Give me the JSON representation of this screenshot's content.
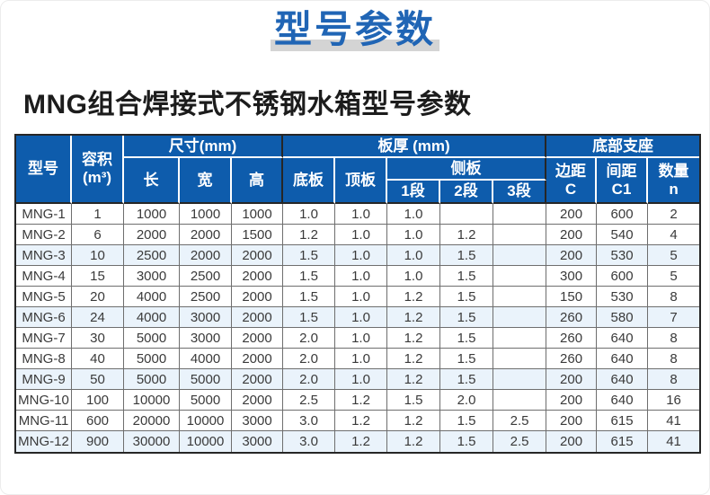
{
  "banner": {
    "title": "型号参数"
  },
  "subtitle": "MNG组合焊接式不锈钢水箱型号参数",
  "colors": {
    "header_blue": "#0e5cac",
    "title_blue": "#2065b5",
    "title_bar_gray": "#d4d4d4",
    "row_tint_blue": "#eaf3fb",
    "border_dark": "#262626",
    "border_gray": "#6e6e6e"
  },
  "table": {
    "header": {
      "model": "型号",
      "volume_l1": "容积",
      "volume_l2": "(m³)",
      "size_group": "尺寸(mm)",
      "length": "长",
      "width": "宽",
      "height": "高",
      "thickness_group": "板厚 (mm)",
      "bottom_plate": "底板",
      "top_plate": "顶板",
      "side_group": "侧板",
      "seg1": "1段",
      "seg2": "2段",
      "seg3": "3段",
      "support_group": "底部支座",
      "edge_l1": "边距",
      "edge_l2": "C",
      "spacing_l1": "间距",
      "spacing_l2": "C1",
      "qty_l1": "数量",
      "qty_l2": "n"
    },
    "row_keys": [
      "model",
      "volume",
      "length",
      "width",
      "height",
      "bottom_plate",
      "top_plate",
      "seg1",
      "seg2",
      "seg3",
      "edge_c",
      "spacing_c1",
      "qty_n"
    ],
    "rows": [
      {
        "model": "MNG-1",
        "volume": "1",
        "length": "1000",
        "width": "1000",
        "height": "1000",
        "bottom_plate": "1.0",
        "top_plate": "1.0",
        "seg1": "1.0",
        "seg2": "",
        "seg3": "",
        "edge_c": "200",
        "spacing_c1": "600",
        "qty_n": "2"
      },
      {
        "model": "MNG-2",
        "volume": "6",
        "length": "2000",
        "width": "2000",
        "height": "1500",
        "bottom_plate": "1.2",
        "top_plate": "1.0",
        "seg1": "1.0",
        "seg2": "1.2",
        "seg3": "",
        "edge_c": "200",
        "spacing_c1": "540",
        "qty_n": "4"
      },
      {
        "model": "MNG-3",
        "volume": "10",
        "length": "2500",
        "width": "2000",
        "height": "2000",
        "bottom_plate": "1.5",
        "top_plate": "1.0",
        "seg1": "1.0",
        "seg2": "1.5",
        "seg3": "",
        "edge_c": "200",
        "spacing_c1": "530",
        "qty_n": "5"
      },
      {
        "model": "MNG-4",
        "volume": "15",
        "length": "3000",
        "width": "2500",
        "height": "2000",
        "bottom_plate": "1.5",
        "top_plate": "1.0",
        "seg1": "1.0",
        "seg2": "1.5",
        "seg3": "",
        "edge_c": "300",
        "spacing_c1": "600",
        "qty_n": "5"
      },
      {
        "model": "MNG-5",
        "volume": "20",
        "length": "4000",
        "width": "2500",
        "height": "2000",
        "bottom_plate": "1.5",
        "top_plate": "1.0",
        "seg1": "1.2",
        "seg2": "1.5",
        "seg3": "",
        "edge_c": "150",
        "spacing_c1": "530",
        "qty_n": "8"
      },
      {
        "model": "MNG-6",
        "volume": "24",
        "length": "4000",
        "width": "3000",
        "height": "2000",
        "bottom_plate": "1.5",
        "top_plate": "1.0",
        "seg1": "1.2",
        "seg2": "1.5",
        "seg3": "",
        "edge_c": "260",
        "spacing_c1": "580",
        "qty_n": "7"
      },
      {
        "model": "MNG-7",
        "volume": "30",
        "length": "5000",
        "width": "3000",
        "height": "2000",
        "bottom_plate": "2.0",
        "top_plate": "1.0",
        "seg1": "1.2",
        "seg2": "1.5",
        "seg3": "",
        "edge_c": "260",
        "spacing_c1": "640",
        "qty_n": "8"
      },
      {
        "model": "MNG-8",
        "volume": "40",
        "length": "5000",
        "width": "4000",
        "height": "2000",
        "bottom_plate": "2.0",
        "top_plate": "1.0",
        "seg1": "1.2",
        "seg2": "1.5",
        "seg3": "",
        "edge_c": "260",
        "spacing_c1": "640",
        "qty_n": "8"
      },
      {
        "model": "MNG-9",
        "volume": "50",
        "length": "5000",
        "width": "5000",
        "height": "2000",
        "bottom_plate": "2.0",
        "top_plate": "1.0",
        "seg1": "1.2",
        "seg2": "1.5",
        "seg3": "",
        "edge_c": "200",
        "spacing_c1": "640",
        "qty_n": "8"
      },
      {
        "model": "MNG-10",
        "volume": "100",
        "length": "10000",
        "width": "5000",
        "height": "2000",
        "bottom_plate": "2.5",
        "top_plate": "1.2",
        "seg1": "1.5",
        "seg2": "2.0",
        "seg3": "",
        "edge_c": "200",
        "spacing_c1": "640",
        "qty_n": "16"
      },
      {
        "model": "MNG-11",
        "volume": "600",
        "length": "20000",
        "width": "10000",
        "height": "3000",
        "bottom_plate": "3.0",
        "top_plate": "1.2",
        "seg1": "1.2",
        "seg2": "1.5",
        "seg3": "2.5",
        "edge_c": "200",
        "spacing_c1": "615",
        "qty_n": "41"
      },
      {
        "model": "MNG-12",
        "volume": "900",
        "length": "30000",
        "width": "10000",
        "height": "3000",
        "bottom_plate": "3.0",
        "top_plate": "1.2",
        "seg1": "1.2",
        "seg2": "1.5",
        "seg3": "2.5",
        "edge_c": "200",
        "spacing_c1": "615",
        "qty_n": "41"
      }
    ]
  }
}
